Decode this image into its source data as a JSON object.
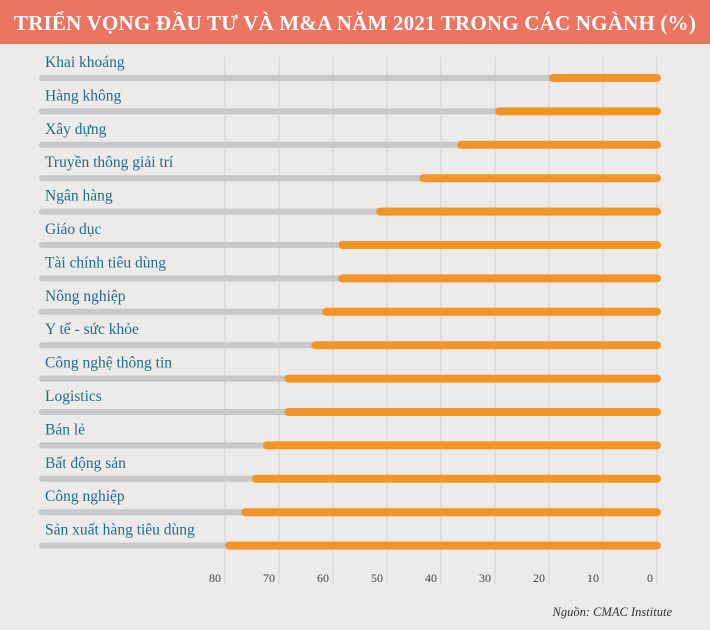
{
  "title": "TRIỂN VỌNG ĐẦU TƯ VÀ M&A NĂM 2021 TRONG CÁC NGÀNH (%)",
  "source": "Nguồn: CMAC Institute",
  "colors": {
    "bar": "#f39427",
    "track": "#c9c8c6",
    "grid": "#d2d1cf",
    "label": "#1f6d88",
    "title_bg": "#ec7562"
  },
  "chart_data": {
    "type": "bar",
    "orientation": "horizontal-reversed",
    "title": "TRIỂN VỌNG ĐẦU TƯ VÀ M&A NĂM 2021 TRONG CÁC NGÀNH (%)",
    "xlabel": "",
    "ylabel": "",
    "xlim": [
      0,
      80
    ],
    "grid": true,
    "xticks": [
      "80",
      "70",
      "60",
      "50",
      "40",
      "30",
      "20",
      "10",
      "0"
    ],
    "categories": [
      "Khai khoáng",
      "Hàng không",
      "Xây dựng",
      "Truyền thông giải trí",
      "Ngân hàng",
      "Giáo dục",
      "Tài chính tiêu dùng",
      "Nông nghiệp",
      "Y tế - sức khỏe",
      "Công nghệ thông tin",
      "Logistics",
      "Bán lẻ",
      "Bất động sản",
      "Công nghiệp",
      "Sản xuất hàng tiêu dùng"
    ],
    "values": [
      20,
      30,
      37,
      44,
      52,
      59,
      59,
      62,
      64,
      69,
      69,
      73,
      75,
      77,
      80
    ]
  }
}
